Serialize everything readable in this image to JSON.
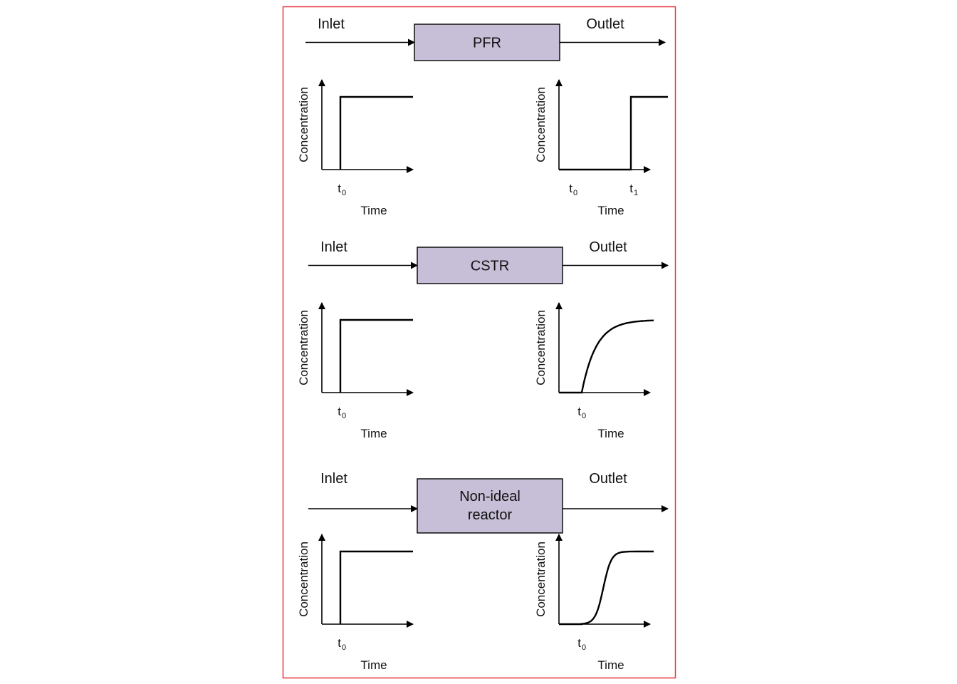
{
  "frame_color": "#e8323c",
  "box_fill": "#c7bed8",
  "line_color": "#000000",
  "panels": [
    {
      "reactor_label": [
        "PFR"
      ],
      "inlet_label": "Inlet",
      "outlet_label": "Outlet",
      "inlet_plot": {
        "ylabel": "Concentration",
        "xlabel": "Time",
        "ticks": [
          {
            "base": "t",
            "sub": "0"
          }
        ],
        "response": "step"
      },
      "outlet_plot": {
        "ylabel": "Concentration",
        "xlabel": "Time",
        "ticks": [
          {
            "base": "t",
            "sub": "0"
          },
          {
            "base": "t",
            "sub": "1"
          }
        ],
        "response": "delayed-step"
      }
    },
    {
      "reactor_label": [
        "CSTR"
      ],
      "inlet_label": "Inlet",
      "outlet_label": "Outlet",
      "inlet_plot": {
        "ylabel": "Concentration",
        "xlabel": "Time",
        "ticks": [
          {
            "base": "t",
            "sub": "0"
          }
        ],
        "response": "step"
      },
      "outlet_plot": {
        "ylabel": "Concentration",
        "xlabel": "Time",
        "ticks": [
          {
            "base": "t",
            "sub": "0"
          }
        ],
        "response": "exponential-rise"
      }
    },
    {
      "reactor_label": [
        "Non-ideal",
        "reactor"
      ],
      "inlet_label": "Inlet",
      "outlet_label": "Outlet",
      "inlet_plot": {
        "ylabel": "Concentration",
        "xlabel": "Time",
        "ticks": [
          {
            "base": "t",
            "sub": "0"
          }
        ],
        "response": "step"
      },
      "outlet_plot": {
        "ylabel": "Concentration",
        "xlabel": "Time",
        "ticks": [
          {
            "base": "t",
            "sub": "0"
          }
        ],
        "response": "sigmoid"
      }
    }
  ]
}
